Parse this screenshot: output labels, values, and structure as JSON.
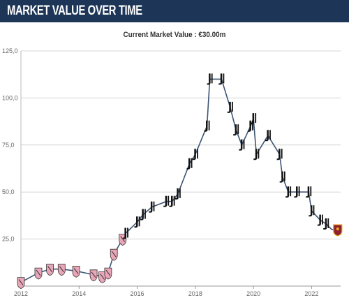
{
  "header": {
    "title": "MARKET VALUE OVER TIME"
  },
  "chart_data": {
    "type": "line",
    "title": "Current Market Value : €30.00m",
    "xlabel": "",
    "ylabel": "",
    "x_ticks": [
      "2012",
      "2014",
      "2016",
      "2018",
      "2020",
      "2022"
    ],
    "y_ticks": [
      "25,0",
      "50,0",
      "75,0",
      "100,0",
      "125,0"
    ],
    "xlim": [
      2012.0,
      2023.0
    ],
    "ylim": [
      0,
      125
    ],
    "grid": true,
    "line_color": "#3d5575",
    "series": [
      {
        "x": [
          2012.0,
          2012.6,
          2013.0,
          2013.4,
          2013.9,
          2014.5,
          2014.8,
          2014.9,
          2015.0,
          2015.2,
          2015.5,
          2015.6,
          2016.0,
          2016.2,
          2016.5,
          2017.0,
          2017.2,
          2017.4,
          2017.8,
          2018.0,
          2018.4,
          2018.5,
          2018.9,
          2019.2,
          2019.4,
          2019.6,
          2019.9,
          2020.0,
          2020.1,
          2020.5,
          2020.9,
          2021.0,
          2021.2,
          2021.5,
          2021.9,
          2022.0,
          2022.3,
          2022.5,
          2022.7,
          2022.9
        ],
        "y": [
          2,
          7,
          9,
          9,
          8,
          6,
          5,
          5,
          7,
          17,
          25,
          28,
          34,
          38,
          42,
          45,
          45,
          49,
          65,
          70,
          85,
          110,
          110,
          95,
          83,
          75,
          85,
          89,
          70,
          80,
          70,
          58,
          50,
          50,
          50,
          40,
          35,
          33,
          30,
          30
        ]
      }
    ],
    "markers": [
      {
        "x": 2012.0,
        "club": "palermo"
      },
      {
        "x": 2012.6,
        "club": "palermo"
      },
      {
        "x": 2013.0,
        "club": "palermo"
      },
      {
        "x": 2013.4,
        "club": "palermo"
      },
      {
        "x": 2013.9,
        "club": "palermo"
      },
      {
        "x": 2014.5,
        "club": "palermo"
      },
      {
        "x": 2014.8,
        "club": "palermo"
      },
      {
        "x": 2015.0,
        "club": "palermo"
      },
      {
        "x": 2015.2,
        "club": "palermo"
      },
      {
        "x": 2015.5,
        "club": "palermo"
      },
      {
        "x": 2015.6,
        "club": "juventus"
      },
      {
        "x": 2016.0,
        "club": "juventus"
      },
      {
        "x": 2016.2,
        "club": "juventus"
      },
      {
        "x": 2016.5,
        "club": "juventus"
      },
      {
        "x": 2017.0,
        "club": "juventus"
      },
      {
        "x": 2017.2,
        "club": "juventus"
      },
      {
        "x": 2017.4,
        "club": "juventus"
      },
      {
        "x": 2017.8,
        "club": "juventus"
      },
      {
        "x": 2018.0,
        "club": "juventus"
      },
      {
        "x": 2018.4,
        "club": "juventus"
      },
      {
        "x": 2018.5,
        "club": "juventus"
      },
      {
        "x": 2018.9,
        "club": "juventus"
      },
      {
        "x": 2019.2,
        "club": "juventus"
      },
      {
        "x": 2019.4,
        "club": "juventus"
      },
      {
        "x": 2019.6,
        "club": "juventus"
      },
      {
        "x": 2019.9,
        "club": "juventus"
      },
      {
        "x": 2020.0,
        "club": "juventus"
      },
      {
        "x": 2020.1,
        "club": "juventus"
      },
      {
        "x": 2020.5,
        "club": "juventus"
      },
      {
        "x": 2020.9,
        "club": "juventus"
      },
      {
        "x": 2021.0,
        "club": "juventus"
      },
      {
        "x": 2021.2,
        "club": "juventus"
      },
      {
        "x": 2021.5,
        "club": "juventus"
      },
      {
        "x": 2021.9,
        "club": "juventus"
      },
      {
        "x": 2022.0,
        "club": "juventus"
      },
      {
        "x": 2022.3,
        "club": "juventus"
      },
      {
        "x": 2022.5,
        "club": "juventus"
      },
      {
        "x": 2022.9,
        "club": "roma"
      }
    ],
    "club_colors": {
      "palermo": "#e8a6b8",
      "juventus": "#111111",
      "roma": "#8e1f2f"
    }
  }
}
